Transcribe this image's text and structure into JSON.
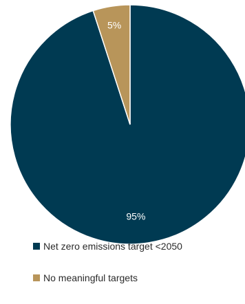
{
  "chart_data": {
    "type": "pie",
    "title": "",
    "categories": [
      "Net zero emissions target <2050",
      "No meaningful targets"
    ],
    "values": [
      95,
      5
    ],
    "labels": [
      "95%",
      "5%"
    ],
    "colors": [
      "#003a52",
      "#b8955a"
    ],
    "start_angle_deg": 0,
    "direction": "clockwise",
    "legend_position": "bottom"
  }
}
